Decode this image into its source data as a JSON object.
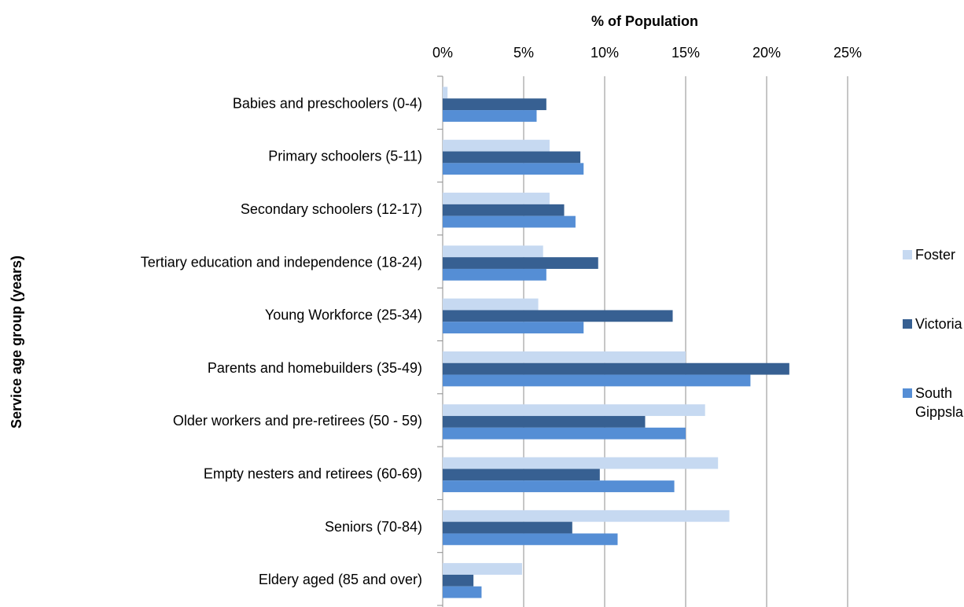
{
  "chart_data": {
    "type": "bar",
    "orientation": "horizontal",
    "x_axis_label": "% of Population",
    "y_axis_label": "Service age group (years)",
    "categories": [
      "Babies and preschoolers (0-4)",
      "Primary schoolers (5-11)",
      "Secondary schoolers (12-17)",
      "Tertiary education and independence (18-24)",
      "Young Workforce (25-34)",
      "Parents and homebuilders (35-49)",
      "Older workers and pre-retirees (50 - 59)",
      "Empty nesters and retirees (60-69)",
      "Seniors (70-84)",
      "Eldery aged (85 and over)"
    ],
    "series": [
      {
        "name": "Foster",
        "color": "#c6d9f1",
        "values": [
          0.3,
          6.6,
          6.6,
          6.2,
          5.9,
          15.0,
          16.2,
          17.0,
          17.7,
          4.9
        ]
      },
      {
        "name": "Victoria",
        "color": "#376092",
        "values": [
          6.4,
          8.5,
          7.5,
          9.6,
          14.2,
          21.4,
          12.5,
          9.7,
          8.0,
          1.9
        ]
      },
      {
        "name": "South Gippsland",
        "color": "#558ed5",
        "values": [
          5.8,
          8.7,
          8.2,
          6.4,
          8.7,
          19.0,
          15.0,
          14.3,
          10.8,
          2.4
        ]
      }
    ],
    "xlim": [
      0,
      25
    ],
    "xticks": [
      {
        "value": 0,
        "label": "0%"
      },
      {
        "value": 5,
        "label": "5%"
      },
      {
        "value": 10,
        "label": "10%"
      },
      {
        "value": 15,
        "label": "15%"
      },
      {
        "value": 20,
        "label": "20%"
      },
      {
        "value": 25,
        "label": "25%"
      }
    ],
    "grid": true,
    "legend": "right"
  }
}
